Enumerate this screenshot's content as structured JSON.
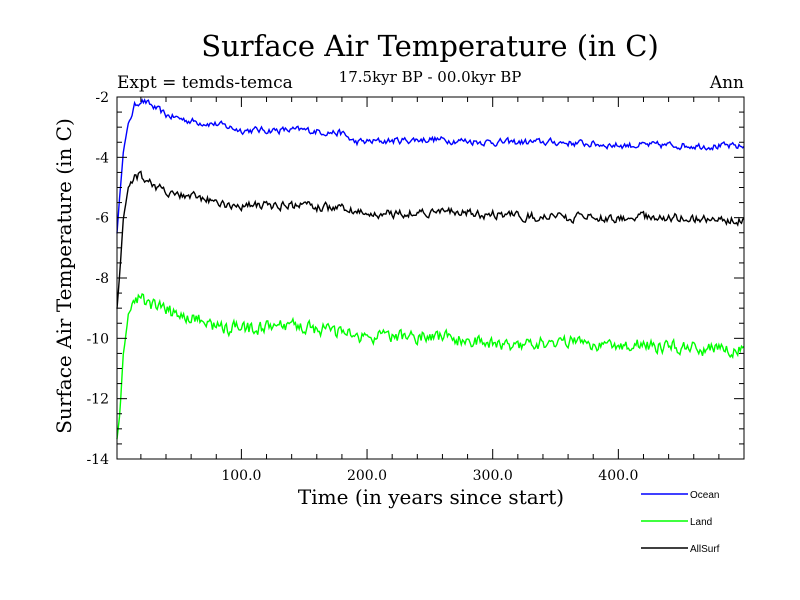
{
  "chart_data": {
    "type": "line",
    "title": "Surface Air Temperature (in C)",
    "subtitle": "17.5kyr BP - 00.0kyr BP",
    "left_note": "Expt = temds-temca",
    "right_note": "Ann",
    "xlabel": "Time (in years since start)",
    "ylabel": "Surface Air Temperature (in C)",
    "xlim": [
      1,
      500
    ],
    "ylim": [
      -14,
      -2
    ],
    "x_ticks": [
      100,
      200,
      300,
      400
    ],
    "x_tick_labels": [
      "100.0",
      "200.0",
      "300.0",
      "400.0"
    ],
    "y_ticks": [
      -14,
      -12,
      -10,
      -8,
      -6,
      -4,
      -2
    ],
    "y_tick_labels": [
      "-14",
      "-12",
      "-10",
      "-8",
      "-6",
      "-4",
      "-2"
    ],
    "series": [
      {
        "name": "Ocean",
        "color": "#0000ff",
        "keypoints": [
          [
            1,
            -6.5
          ],
          [
            3,
            -5.4
          ],
          [
            6,
            -3.8
          ],
          [
            10,
            -2.9
          ],
          [
            15,
            -2.3
          ],
          [
            20,
            -2.1
          ],
          [
            25,
            -2.2
          ],
          [
            40,
            -2.6
          ],
          [
            60,
            -2.8
          ],
          [
            80,
            -2.9
          ],
          [
            100,
            -3.1
          ],
          [
            150,
            -3.1
          ],
          [
            180,
            -3.2
          ],
          [
            190,
            -3.5
          ],
          [
            250,
            -3.4
          ],
          [
            300,
            -3.5
          ],
          [
            350,
            -3.5
          ],
          [
            400,
            -3.6
          ],
          [
            450,
            -3.6
          ],
          [
            500,
            -3.65
          ]
        ],
        "noise": 0.1
      },
      {
        "name": "Land",
        "color": "#00ff00",
        "keypoints": [
          [
            1,
            -13.3
          ],
          [
            3,
            -12.6
          ],
          [
            6,
            -10.6
          ],
          [
            10,
            -9.2
          ],
          [
            14,
            -8.8
          ],
          [
            20,
            -8.7
          ],
          [
            40,
            -9.1
          ],
          [
            60,
            -9.3
          ],
          [
            80,
            -9.6
          ],
          [
            100,
            -9.7
          ],
          [
            150,
            -9.6
          ],
          [
            200,
            -10.0
          ],
          [
            250,
            -9.9
          ],
          [
            300,
            -10.2
          ],
          [
            350,
            -10.1
          ],
          [
            400,
            -10.2
          ],
          [
            450,
            -10.3
          ],
          [
            500,
            -10.4
          ]
        ],
        "noise": 0.2
      },
      {
        "name": "AllSurf",
        "color": "#000000",
        "keypoints": [
          [
            1,
            -9.0
          ],
          [
            3,
            -7.9
          ],
          [
            6,
            -6.1
          ],
          [
            10,
            -5.0
          ],
          [
            15,
            -4.6
          ],
          [
            20,
            -4.6
          ],
          [
            40,
            -5.2
          ],
          [
            60,
            -5.3
          ],
          [
            80,
            -5.5
          ],
          [
            100,
            -5.6
          ],
          [
            150,
            -5.6
          ],
          [
            180,
            -5.7
          ],
          [
            200,
            -5.9
          ],
          [
            250,
            -5.8
          ],
          [
            300,
            -5.9
          ],
          [
            350,
            -6.0
          ],
          [
            400,
            -6.0
          ],
          [
            450,
            -6.0
          ],
          [
            500,
            -6.1
          ]
        ],
        "noise": 0.13
      }
    ]
  }
}
